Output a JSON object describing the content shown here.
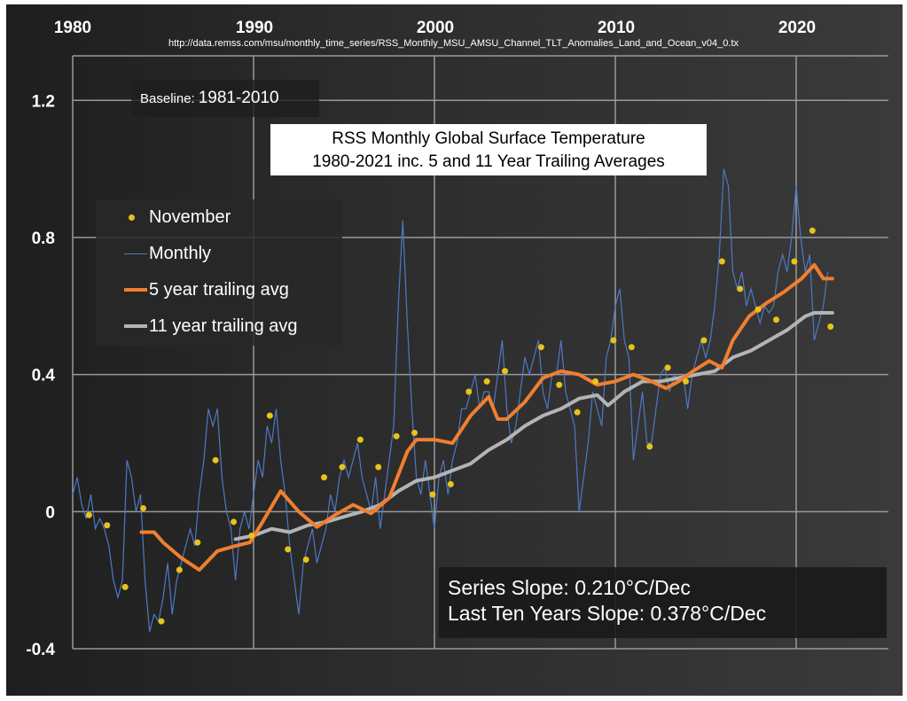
{
  "chart_data": {
    "type": "line",
    "title": "RSS Monthly Global Surface Temperature",
    "subtitle": "1980-2021 inc. 5 and 11 Year Trailing Averages",
    "source": "http://data.remss.com/msu/monthly_time_series/RSS_Monthly_MSU_AMSU_Channel_TLT_Anomalies_Land_and_Ocean_v04_0.tx",
    "baseline_label": "Baseline:",
    "baseline_value": "1981-2010",
    "x_ticks": [
      "1980",
      "1990",
      "2000",
      "2010",
      "2020"
    ],
    "y_ticks": [
      "1.2",
      "0.8",
      "0.4",
      "0",
      "-0.4"
    ],
    "xlim": [
      1980,
      2025.1
    ],
    "ylim": [
      -0.4,
      1.33
    ],
    "grid": true,
    "legend_placement": "left",
    "slope_text": [
      "Series Slope: 0.210°C/Dec",
      "Last Ten Years Slope: 0.378°C/Dec"
    ],
    "series": [
      {
        "name": "November",
        "kind": "points",
        "color": "#e8c31a",
        "x": [
          1980.9,
          1981.9,
          1982.9,
          1983.9,
          1984.9,
          1985.9,
          1986.9,
          1987.9,
          1988.9,
          1989.9,
          1990.9,
          1991.9,
          1992.9,
          1993.9,
          1994.9,
          1995.9,
          1996.9,
          1997.9,
          1998.9,
          1999.9,
          2000.9,
          2001.9,
          2002.9,
          2003.9,
          2005.9,
          2006.9,
          2007.9,
          2008.9,
          2009.9,
          2010.9,
          2011.9,
          2012.9,
          2013.9,
          2014.9,
          2015.9,
          2016.9,
          2017.9,
          2018.9,
          2019.9,
          2020.9,
          2021.9
        ],
        "y": [
          -0.01,
          -0.04,
          -0.22,
          0.01,
          -0.32,
          -0.17,
          -0.09,
          0.15,
          -0.03,
          -0.07,
          0.28,
          -0.11,
          -0.14,
          0.1,
          0.13,
          0.21,
          0.13,
          0.22,
          0.23,
          0.05,
          0.08,
          0.35,
          0.38,
          0.41,
          0.48,
          0.37,
          0.29,
          0.38,
          0.5,
          0.48,
          0.19,
          0.42,
          0.38,
          0.5,
          0.73,
          0.65,
          0.59,
          0.56,
          0.73,
          0.82,
          0.54
        ]
      },
      {
        "name": "Monthly",
        "kind": "line",
        "color": "#4f78c4",
        "start": 1980,
        "step": 0.25,
        "y": [
          0.05,
          0.1,
          0.02,
          -0.02,
          0.05,
          -0.05,
          -0.02,
          -0.05,
          -0.1,
          -0.2,
          -0.25,
          -0.2,
          0.15,
          0.1,
          0.0,
          0.05,
          -0.2,
          -0.35,
          -0.3,
          -0.32,
          -0.25,
          -0.15,
          -0.3,
          -0.2,
          -0.15,
          -0.1,
          -0.05,
          -0.1,
          0.05,
          0.15,
          0.3,
          0.25,
          0.3,
          0.1,
          0.0,
          -0.05,
          -0.2,
          -0.05,
          0.0,
          -0.05,
          0.05,
          0.15,
          0.1,
          0.25,
          0.2,
          0.3,
          0.15,
          0.05,
          -0.1,
          -0.2,
          -0.3,
          -0.15,
          -0.1,
          -0.05,
          -0.15,
          -0.1,
          -0.05,
          0.05,
          0.0,
          0.1,
          0.15,
          0.1,
          0.15,
          0.2,
          0.1,
          0.05,
          0.0,
          0.1,
          -0.05,
          0.05,
          0.15,
          0.25,
          0.6,
          0.85,
          0.55,
          0.3,
          0.1,
          0.05,
          0.15,
          0.05,
          -0.05,
          0.1,
          0.15,
          0.05,
          0.15,
          0.2,
          0.3,
          0.3,
          0.35,
          0.4,
          0.3,
          0.35,
          0.35,
          0.3,
          0.4,
          0.5,
          0.3,
          0.2,
          0.25,
          0.35,
          0.45,
          0.4,
          0.45,
          0.5,
          0.35,
          0.3,
          0.4,
          0.4,
          0.5,
          0.35,
          0.3,
          0.25,
          0.0,
          0.1,
          0.2,
          0.35,
          0.3,
          0.25,
          0.45,
          0.5,
          0.6,
          0.65,
          0.5,
          0.45,
          0.15,
          0.25,
          0.35,
          0.2,
          0.2,
          0.3,
          0.4,
          0.42,
          0.35,
          0.4,
          0.38,
          0.4,
          0.3,
          0.4,
          0.45,
          0.5,
          0.45,
          0.5,
          0.6,
          0.75,
          1.0,
          0.95,
          0.7,
          0.65,
          0.7,
          0.6,
          0.65,
          0.6,
          0.55,
          0.6,
          0.58,
          0.6,
          0.7,
          0.75,
          0.7,
          0.8,
          0.95,
          0.8,
          0.7,
          0.75,
          0.5,
          0.55,
          0.6,
          0.7
        ]
      },
      {
        "name": "5 year trailing avg",
        "kind": "line",
        "color": "#f07f2f",
        "x": [
          1983.8,
          1984.5,
          1985,
          1986,
          1987,
          1988,
          1989,
          1989.8,
          1990.5,
          1991.5,
          1992.5,
          1993.5,
          1994.5,
          1995.5,
          1996.5,
          1997.5,
          1998.5,
          1999,
          2000,
          2001,
          2002,
          2003,
          2003.5,
          2004,
          2005,
          2006,
          2007,
          2008,
          2009,
          2010,
          2011,
          2012,
          2012.8,
          2013.5,
          2014.3,
          2015.2,
          2015.9,
          2016.5,
          2017.4,
          2018.4,
          2019.3,
          2020.3,
          2021,
          2021.5,
          2022
        ],
        "y": [
          -0.06,
          -0.06,
          -0.09,
          -0.135,
          -0.17,
          -0.115,
          -0.1,
          -0.09,
          -0.03,
          0.06,
          0.0,
          -0.045,
          -0.01,
          0.02,
          -0.005,
          0.04,
          0.175,
          0.21,
          0.21,
          0.2,
          0.28,
          0.335,
          0.27,
          0.27,
          0.32,
          0.39,
          0.41,
          0.4,
          0.37,
          0.38,
          0.4,
          0.38,
          0.36,
          0.38,
          0.41,
          0.44,
          0.42,
          0.5,
          0.57,
          0.61,
          0.64,
          0.68,
          0.72,
          0.68,
          0.68
        ]
      },
      {
        "name": "11 year trailing avg",
        "kind": "line",
        "color": "#b4b4b4",
        "x": [
          1989,
          1990,
          1991,
          1992,
          1993,
          1994,
          1995,
          1996,
          1997,
          1998,
          1999,
          2000,
          2001,
          2002,
          2003,
          2004,
          2005,
          2006,
          2007,
          2008,
          2009,
          2009.6,
          2010.5,
          2011.5,
          2012.5,
          2013.5,
          2014.5,
          2015.5,
          2016.5,
          2017.5,
          2018.5,
          2019.5,
          2020.5,
          2021,
          2022
        ],
        "y": [
          -0.08,
          -0.07,
          -0.05,
          -0.06,
          -0.04,
          -0.03,
          -0.015,
          0.0,
          0.02,
          0.06,
          0.09,
          0.1,
          0.12,
          0.14,
          0.18,
          0.21,
          0.25,
          0.28,
          0.3,
          0.33,
          0.34,
          0.31,
          0.35,
          0.38,
          0.38,
          0.39,
          0.4,
          0.41,
          0.45,
          0.47,
          0.5,
          0.53,
          0.57,
          0.58,
          0.58
        ]
      }
    ]
  }
}
